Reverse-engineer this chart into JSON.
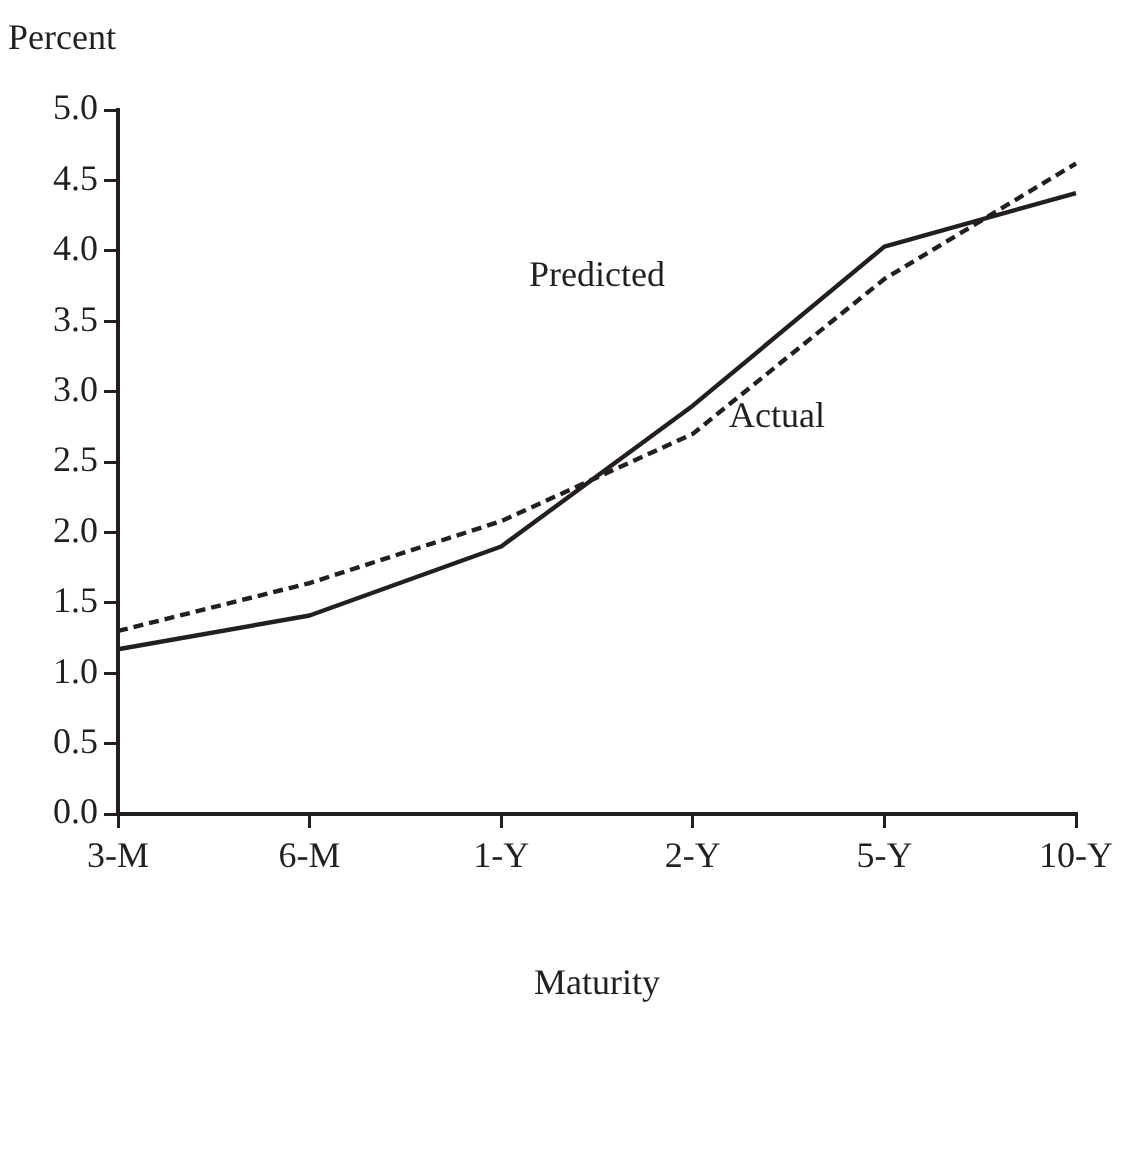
{
  "chart_data": {
    "type": "line",
    "xlabel": "Maturity",
    "ylabel": "Percent",
    "categories": [
      "3-M",
      "6-M",
      "1-Y",
      "2-Y",
      "5-Y",
      "10-Y"
    ],
    "series": [
      {
        "name": "Predicted",
        "color": "#231f20",
        "line_style": "solid",
        "values": [
          1.17,
          1.41,
          1.9,
          2.9,
          4.03,
          4.41
        ]
      },
      {
        "name": "Actual",
        "color": "#231f20",
        "line_style": "dashed",
        "values": [
          1.3,
          1.64,
          2.08,
          2.7,
          3.8,
          4.62
        ]
      }
    ],
    "ylim": [
      0,
      5
    ],
    "yticks": [
      {
        "value": 0,
        "label": "0.0"
      },
      {
        "value": 0.5,
        "label": "0.5"
      },
      {
        "value": 1,
        "label": "1.0"
      },
      {
        "value": 1.5,
        "label": "1.5"
      },
      {
        "value": 2,
        "label": "2.0"
      },
      {
        "value": 2.5,
        "label": "2.5"
      },
      {
        "value": 3,
        "label": "3.0"
      },
      {
        "value": 3.5,
        "label": "3.5"
      },
      {
        "value": 4,
        "label": "4.0"
      },
      {
        "value": 4.5,
        "label": "4.5"
      },
      {
        "value": 5,
        "label": "5.0"
      }
    ],
    "grid": false,
    "legend": false,
    "marker": "none"
  }
}
